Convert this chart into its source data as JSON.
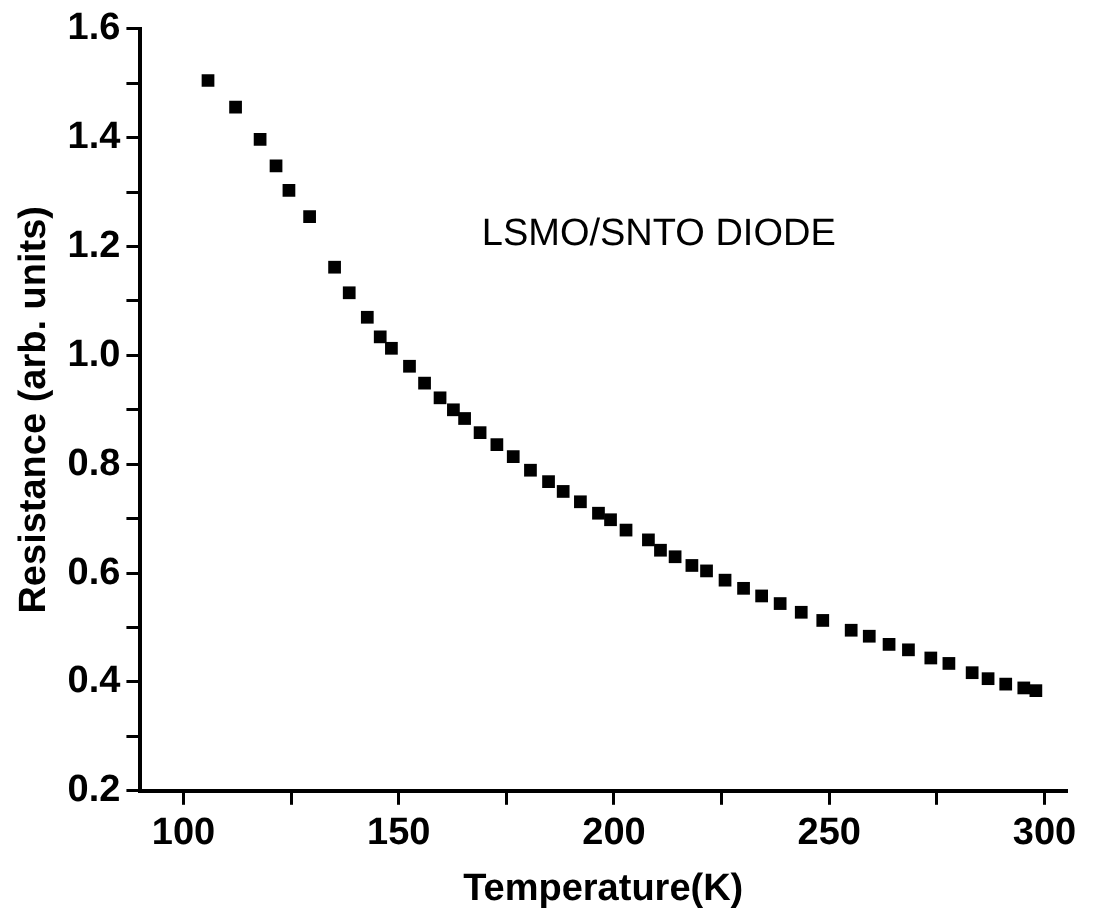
{
  "chart_data": {
    "type": "scatter",
    "xlabel": "Temperature(K)",
    "ylabel": "Resistance (arb. units)",
    "annotations": [
      "LSMO/SNTO DIODE"
    ],
    "x": [
      105.7,
      112.1,
      117.8,
      121.5,
      124.5,
      129.3,
      135.1,
      138.5,
      142.7,
      145.7,
      148.3,
      152.5,
      156.0,
      159.6,
      162.7,
      165.3,
      168.9,
      172.8,
      176.6,
      180.6,
      184.8,
      188.2,
      192.2,
      196.4,
      199.2,
      202.8,
      208.0,
      210.8,
      214.2,
      218.1,
      221.5,
      225.8,
      230.1,
      234.3,
      238.6,
      243.5,
      248.5,
      255.1,
      259.3,
      263.9,
      268.4,
      273.6,
      277.8,
      283.2,
      286.9,
      291.0,
      295.2,
      298.0
    ],
    "series": [
      {
        "color": "#000000",
        "values": [
          1.505,
          1.456,
          1.397,
          1.348,
          1.303,
          1.255,
          1.162,
          1.115,
          1.07,
          1.034,
          1.013,
          0.98,
          0.949,
          0.922,
          0.9,
          0.884,
          0.858,
          0.836,
          0.814,
          0.789,
          0.768,
          0.75,
          0.731,
          0.71,
          0.698,
          0.679,
          0.661,
          0.642,
          0.63,
          0.614,
          0.604,
          0.587,
          0.572,
          0.558,
          0.544,
          0.528,
          0.513,
          0.495,
          0.484,
          0.469,
          0.459,
          0.444,
          0.434,
          0.417,
          0.406,
          0.396,
          0.389,
          0.384
        ]
      }
    ],
    "marker": "square",
    "grid": false,
    "legend": false,
    "xlim": [
      90,
      305
    ],
    "ylim": [
      0.2,
      1.6
    ],
    "xticks": [
      100,
      {
        "value": 125,
        "label": null
      },
      150,
      {
        "value": 175,
        "label": null
      },
      200,
      {
        "value": 225,
        "label": null
      },
      250,
      {
        "value": 275,
        "label": null
      },
      300
    ],
    "yticks": [
      0.2,
      {
        "value": 0.3,
        "label": null
      },
      0.4,
      {
        "value": 0.5,
        "label": null
      },
      0.6,
      {
        "value": 0.7,
        "label": null
      },
      0.8,
      {
        "value": 0.9,
        "label": null
      },
      {
        "value": 1.0,
        "label": "1.0"
      },
      {
        "value": 1.1,
        "label": null
      },
      1.2,
      {
        "value": 1.3,
        "label": null
      },
      1.4,
      {
        "value": 1.5,
        "label": null
      },
      1.6
    ]
  }
}
